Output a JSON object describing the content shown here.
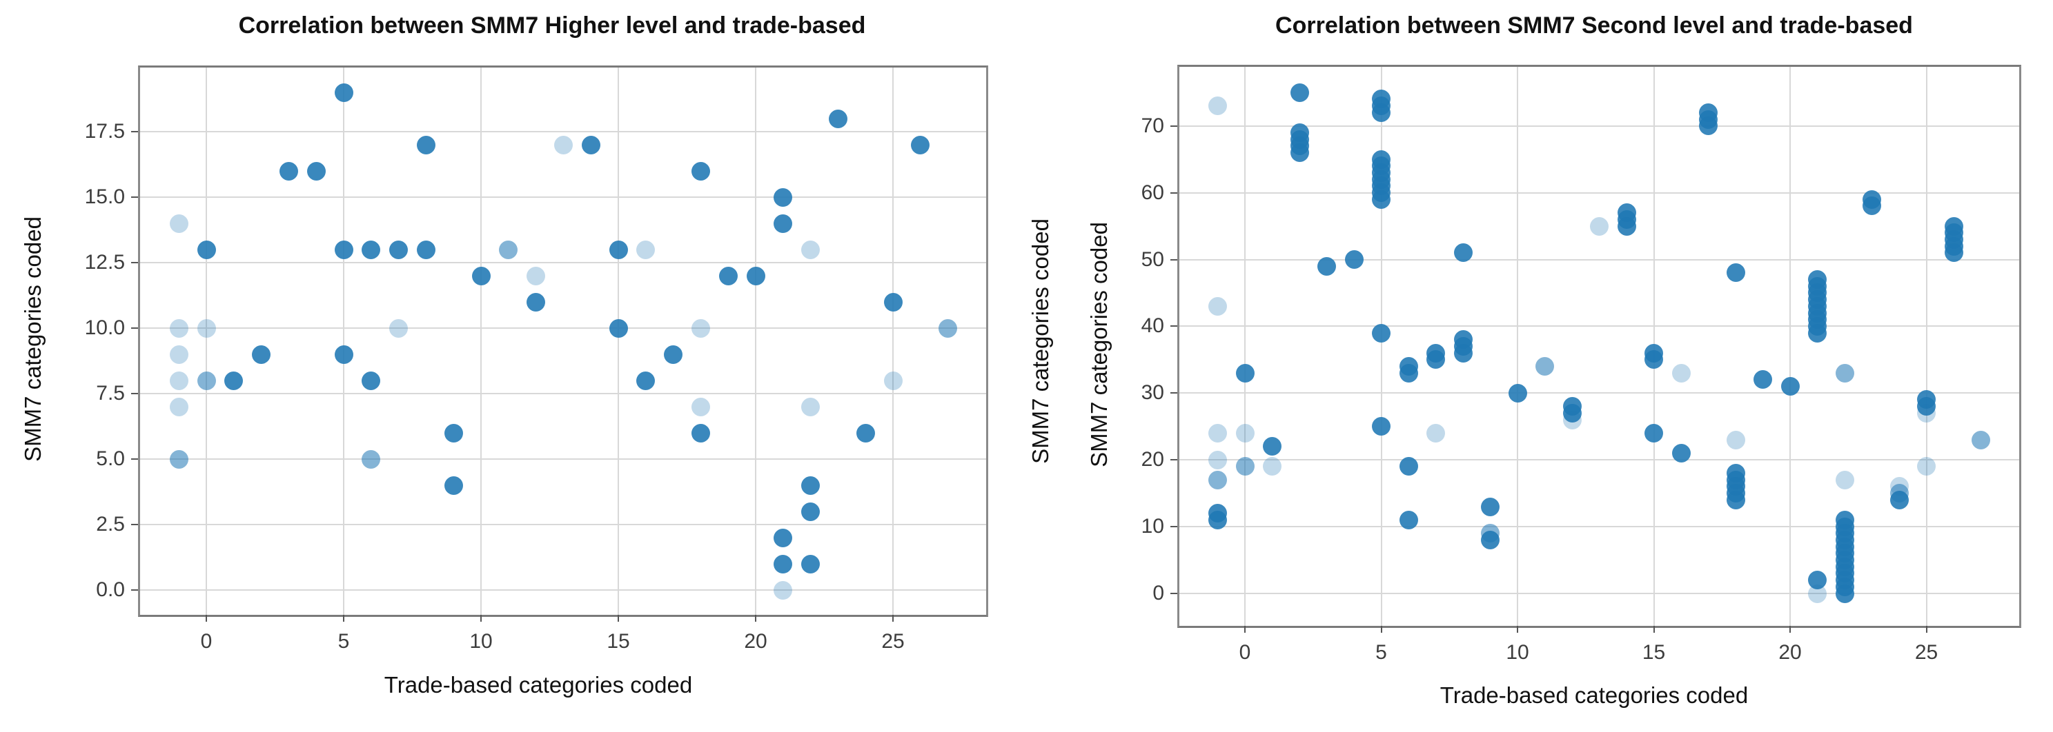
{
  "figure": {
    "background": "#ffffff",
    "marker_color": "#1f77b4",
    "alpha_levels": {
      "d": 0.88,
      "m": 0.55,
      "l": 0.28
    }
  },
  "chart_data": [
    {
      "type": "scatter",
      "title": "Correlation between SMM7 Higher level and trade-based",
      "xlabel": "Trade-based categories coded",
      "ylabel": "SMM7 categories coded",
      "x_ticks": [
        "0",
        "5",
        "10",
        "15",
        "20",
        "25"
      ],
      "x_tick_values": [
        0,
        5,
        10,
        15,
        20,
        25
      ],
      "y_ticks": [
        "0.0",
        "2.5",
        "5.0",
        "7.5",
        "10.0",
        "12.5",
        "15.0",
        "17.5"
      ],
      "y_tick_values": [
        0,
        2.5,
        5,
        7.5,
        10,
        12.5,
        15,
        17.5
      ],
      "xlim": [
        -2.4,
        28.4
      ],
      "ylim": [
        -0.95,
        19.95
      ],
      "grid": true,
      "legend": false,
      "points": [
        [
          5,
          19,
          "d"
        ],
        [
          23,
          18,
          "d"
        ],
        [
          8,
          17,
          "d"
        ],
        [
          14,
          17,
          "d"
        ],
        [
          26,
          17,
          "d"
        ],
        [
          13,
          17,
          "l"
        ],
        [
          3,
          16,
          "d"
        ],
        [
          4,
          16,
          "d"
        ],
        [
          18,
          16,
          "d"
        ],
        [
          21,
          15,
          "d"
        ],
        [
          21,
          14,
          "d"
        ],
        [
          -1,
          14,
          "l"
        ],
        [
          0,
          13,
          "d"
        ],
        [
          5,
          13,
          "d"
        ],
        [
          6,
          13,
          "d"
        ],
        [
          7,
          13,
          "d"
        ],
        [
          8,
          13,
          "d"
        ],
        [
          15,
          13,
          "d"
        ],
        [
          11,
          13,
          "m"
        ],
        [
          16,
          13,
          "l"
        ],
        [
          22,
          13,
          "l"
        ],
        [
          10,
          12,
          "d"
        ],
        [
          19,
          12,
          "d"
        ],
        [
          20,
          12,
          "d"
        ],
        [
          12,
          12,
          "l"
        ],
        [
          12,
          11,
          "d"
        ],
        [
          25,
          11,
          "d"
        ],
        [
          15,
          10,
          "d"
        ],
        [
          -1,
          10,
          "l"
        ],
        [
          0,
          10,
          "l"
        ],
        [
          7,
          10,
          "l"
        ],
        [
          18,
          10,
          "l"
        ],
        [
          27,
          10,
          "m"
        ],
        [
          2,
          9,
          "d"
        ],
        [
          5,
          9,
          "d"
        ],
        [
          17,
          9,
          "d"
        ],
        [
          -1,
          9,
          "l"
        ],
        [
          1,
          8,
          "d"
        ],
        [
          6,
          8,
          "d"
        ],
        [
          16,
          8,
          "d"
        ],
        [
          0,
          8,
          "m"
        ],
        [
          -1,
          8,
          "l"
        ],
        [
          25,
          8,
          "l"
        ],
        [
          -1,
          7,
          "l"
        ],
        [
          18,
          7,
          "l"
        ],
        [
          22,
          7,
          "l"
        ],
        [
          9,
          6,
          "d"
        ],
        [
          18,
          6,
          "d"
        ],
        [
          24,
          6,
          "d"
        ],
        [
          -1,
          5,
          "m"
        ],
        [
          6,
          5,
          "m"
        ],
        [
          9,
          4,
          "d"
        ],
        [
          22,
          4,
          "d"
        ],
        [
          22,
          3,
          "d"
        ],
        [
          21,
          2,
          "d"
        ],
        [
          21,
          1,
          "d"
        ],
        [
          22,
          1,
          "d"
        ],
        [
          21,
          0,
          "l"
        ]
      ]
    },
    {
      "type": "scatter",
      "title": "Correlation between SMM7 Second level and trade-based",
      "xlabel": "Trade-based categories coded",
      "ylabel": "SMM7 categories coded",
      "ylabel_duplicate": "SMM7 categories coded",
      "x_ticks": [
        "0",
        "5",
        "10",
        "15",
        "20",
        "25"
      ],
      "x_tick_values": [
        0,
        5,
        10,
        15,
        20,
        25
      ],
      "y_ticks": [
        "0",
        "10",
        "20",
        "30",
        "40",
        "50",
        "60",
        "70"
      ],
      "y_tick_values": [
        0,
        10,
        20,
        30,
        40,
        50,
        60,
        70
      ],
      "xlim": [
        -2.4,
        28.4
      ],
      "ylim": [
        -4.8,
        78.8
      ],
      "grid": true,
      "legend": false,
      "points": [
        [
          2,
          75,
          "d"
        ],
        [
          -1,
          73,
          "l"
        ],
        [
          5,
          74,
          "d"
        ],
        [
          5,
          73,
          "d"
        ],
        [
          5,
          72,
          "d"
        ],
        [
          17,
          72,
          "d"
        ],
        [
          17,
          71,
          "d"
        ],
        [
          17,
          70,
          "d"
        ],
        [
          2,
          69,
          "d"
        ],
        [
          2,
          68,
          "d"
        ],
        [
          2,
          67,
          "d"
        ],
        [
          2,
          66,
          "d"
        ],
        [
          5,
          65,
          "d"
        ],
        [
          5,
          64,
          "d"
        ],
        [
          5,
          63,
          "d"
        ],
        [
          5,
          62,
          "d"
        ],
        [
          5,
          61,
          "d"
        ],
        [
          5,
          60,
          "d"
        ],
        [
          5,
          59,
          "d"
        ],
        [
          23,
          59,
          "d"
        ],
        [
          23,
          58,
          "d"
        ],
        [
          14,
          57,
          "d"
        ],
        [
          14,
          56,
          "d"
        ],
        [
          14,
          55,
          "d"
        ],
        [
          13,
          55,
          "l"
        ],
        [
          26,
          55,
          "d"
        ],
        [
          26,
          54,
          "d"
        ],
        [
          26,
          53,
          "d"
        ],
        [
          26,
          52,
          "d"
        ],
        [
          26,
          51,
          "d"
        ],
        [
          8,
          51,
          "d"
        ],
        [
          4,
          50,
          "d"
        ],
        [
          3,
          49,
          "d"
        ],
        [
          18,
          48,
          "d"
        ],
        [
          21,
          47,
          "d"
        ],
        [
          21,
          46,
          "d"
        ],
        [
          21,
          45,
          "d"
        ],
        [
          21,
          44,
          "d"
        ],
        [
          21,
          43,
          "d"
        ],
        [
          21,
          42,
          "d"
        ],
        [
          21,
          41,
          "d"
        ],
        [
          21,
          40,
          "d"
        ],
        [
          21,
          39,
          "d"
        ],
        [
          -1,
          43,
          "l"
        ],
        [
          5,
          39,
          "d"
        ],
        [
          8,
          38,
          "d"
        ],
        [
          8,
          37,
          "d"
        ],
        [
          8,
          36,
          "d"
        ],
        [
          7,
          36,
          "d"
        ],
        [
          7,
          35,
          "d"
        ],
        [
          15,
          36,
          "d"
        ],
        [
          15,
          35,
          "d"
        ],
        [
          6,
          34,
          "d"
        ],
        [
          6,
          33,
          "d"
        ],
        [
          11,
          34,
          "m"
        ],
        [
          0,
          33,
          "d"
        ],
        [
          16,
          33,
          "l"
        ],
        [
          22,
          33,
          "m"
        ],
        [
          19,
          32,
          "d"
        ],
        [
          20,
          31,
          "d"
        ],
        [
          10,
          30,
          "d"
        ],
        [
          25,
          29,
          "d"
        ],
        [
          25,
          28,
          "d"
        ],
        [
          25,
          27,
          "l"
        ],
        [
          12,
          28,
          "d"
        ],
        [
          12,
          27,
          "d"
        ],
        [
          12,
          26,
          "l"
        ],
        [
          5,
          25,
          "d"
        ],
        [
          15,
          24,
          "d"
        ],
        [
          -1,
          24,
          "l"
        ],
        [
          0,
          24,
          "l"
        ],
        [
          7,
          24,
          "l"
        ],
        [
          27,
          23,
          "m"
        ],
        [
          18,
          23,
          "l"
        ],
        [
          1,
          22,
          "d"
        ],
        [
          16,
          21,
          "d"
        ],
        [
          -1,
          20,
          "l"
        ],
        [
          0,
          19,
          "m"
        ],
        [
          1,
          19,
          "l"
        ],
        [
          6,
          19,
          "d"
        ],
        [
          25,
          19,
          "l"
        ],
        [
          18,
          18,
          "d"
        ],
        [
          18,
          17,
          "d"
        ],
        [
          18,
          16,
          "d"
        ],
        [
          18,
          15,
          "d"
        ],
        [
          18,
          14,
          "d"
        ],
        [
          -1,
          17,
          "m"
        ],
        [
          22,
          17,
          "l"
        ],
        [
          24,
          16,
          "l"
        ],
        [
          24,
          15,
          "m"
        ],
        [
          24,
          14,
          "d"
        ],
        [
          9,
          13,
          "d"
        ],
        [
          -1,
          12,
          "d"
        ],
        [
          -1,
          11,
          "d"
        ],
        [
          6,
          11,
          "d"
        ],
        [
          22,
          11,
          "d"
        ],
        [
          22,
          10,
          "d"
        ],
        [
          22,
          9,
          "d"
        ],
        [
          22,
          8,
          "d"
        ],
        [
          22,
          7,
          "d"
        ],
        [
          22,
          6,
          "d"
        ],
        [
          22,
          5,
          "d"
        ],
        [
          22,
          4,
          "d"
        ],
        [
          22,
          3,
          "d"
        ],
        [
          22,
          2,
          "d"
        ],
        [
          22,
          1,
          "d"
        ],
        [
          22,
          0,
          "d"
        ],
        [
          9,
          9,
          "m"
        ],
        [
          9,
          8,
          "d"
        ],
        [
          21,
          2,
          "d"
        ],
        [
          21,
          0,
          "l"
        ]
      ]
    }
  ]
}
